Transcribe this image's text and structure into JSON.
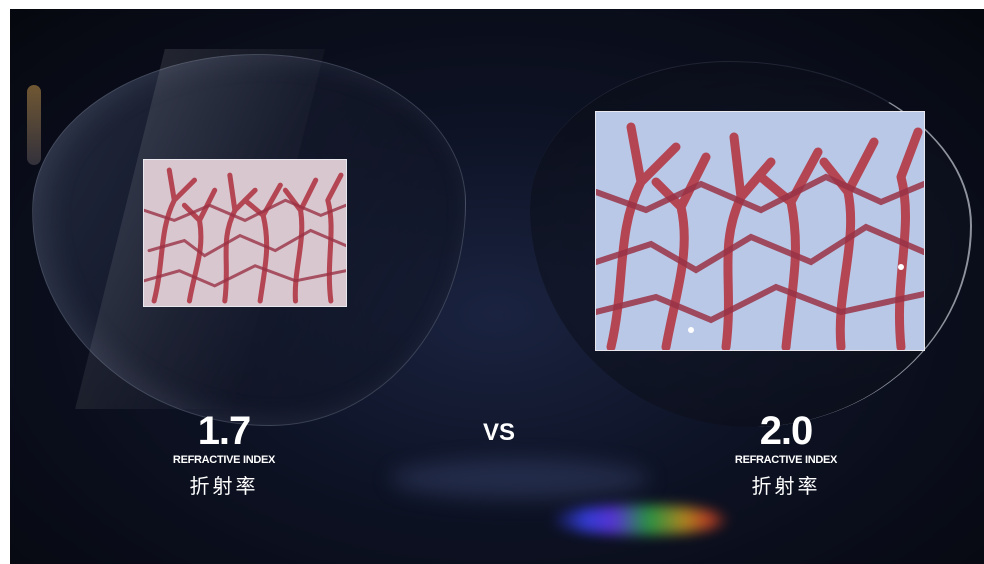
{
  "left": {
    "value": "1.7",
    "subtitle": "REFRACTIVE INDEX",
    "cn": "折射率"
  },
  "right": {
    "value": "2.0",
    "subtitle": "REFRACTIVE INDEX",
    "cn": "折射率"
  },
  "vs_label": "VS",
  "colors": {
    "coral": "#b44654",
    "background": "#0d1224",
    "text": "#ffffff"
  }
}
